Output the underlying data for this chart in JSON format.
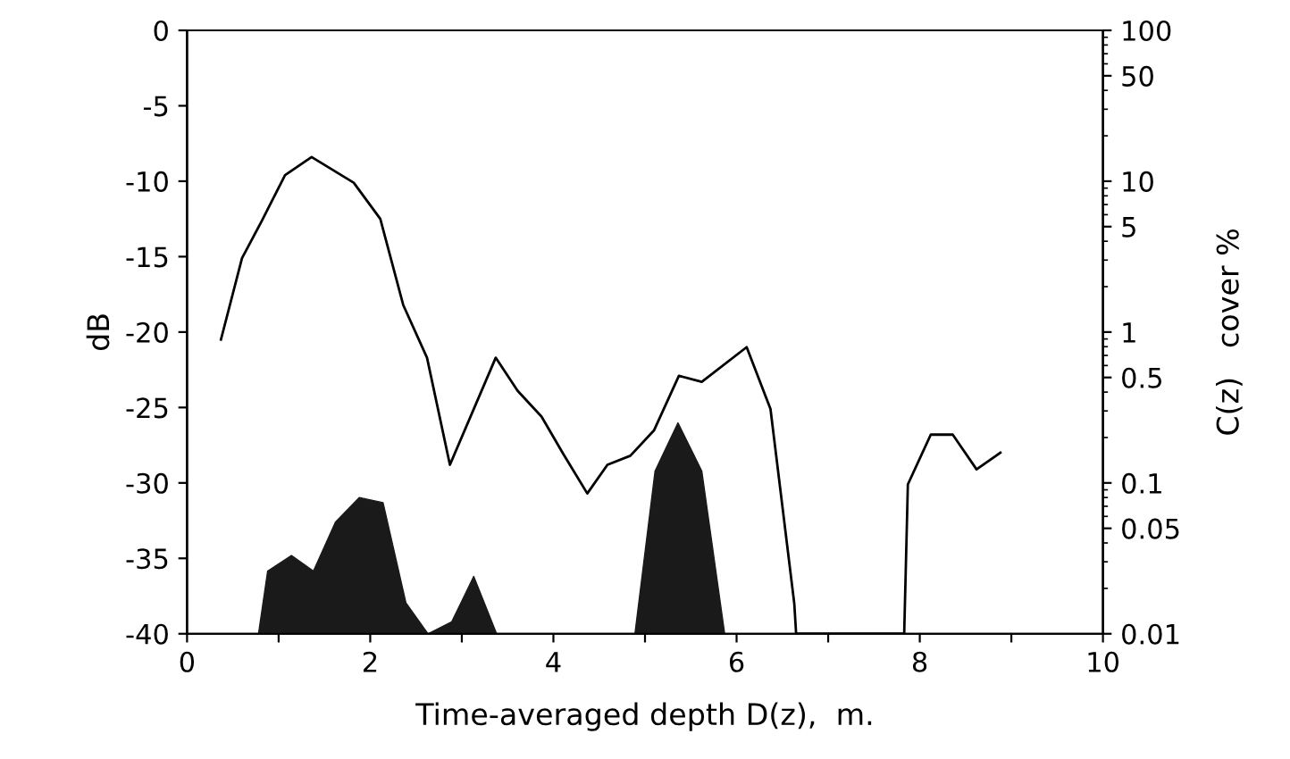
{
  "chart_data": {
    "type": "line",
    "xlabel": "Time-averaged depth D(z),  m.",
    "ylabel": "dB",
    "y2label": "C(z)   cover %",
    "xlim": [
      0,
      10
    ],
    "xticks": [
      0,
      {
        "value": 1,
        "label": null
      },
      2,
      {
        "value": 3,
        "label": null
      },
      4,
      {
        "value": 5,
        "label": null
      },
      6,
      {
        "value": 7,
        "label": null
      },
      8,
      {
        "value": 9,
        "label": null
      },
      10
    ],
    "ylim": [
      -40,
      0
    ],
    "yticks": [
      -40,
      -35,
      -30,
      -25,
      -20,
      -15,
      -10,
      -5,
      0
    ],
    "y2lim": [
      0.01,
      100
    ],
    "y2ticks": [
      0.01,
      0.05,
      0.1,
      0.5,
      1,
      5,
      10,
      50,
      100
    ],
    "log": "y2",
    "grid": false,
    "series": [
      {
        "color": "#000000",
        "x": [
          0.37,
          0.6,
          0.81,
          1.07,
          1.36,
          1.82,
          2.11,
          2.36,
          2.62,
          2.87,
          3.37,
          3.61,
          3.87,
          4.11,
          4.37,
          4.59,
          4.84,
          5.1,
          5.37,
          5.62,
          6.11,
          6.37,
          6.63,
          6.65,
          7.83,
          7.87,
          8.12,
          8.36,
          8.62,
          8.88
        ],
        "values": [
          -20.5,
          -15.1,
          -12.7,
          -9.6,
          -8.4,
          -10.1,
          -12.5,
          -18.2,
          -21.7,
          -28.8,
          -21.7,
          -23.9,
          -25.6,
          -28.1,
          -30.7,
          -28.8,
          -28.2,
          -26.5,
          -22.9,
          -23.3,
          -21.0,
          -25.1,
          -38.0,
          -40,
          -40,
          -30.1,
          -26.8,
          -26.8,
          -29.1,
          -28.0
        ]
      },
      {
        "type": "area",
        "axis": "y2",
        "color": "#1a1a1a",
        "x": [
          0.78,
          0.88,
          1.14,
          1.38,
          1.62,
          1.88,
          2.14,
          2.39,
          2.63,
          2.89,
          3.13,
          3.38,
          4.89,
          5.11,
          5.36,
          5.62,
          5.87
        ],
        "values": [
          0.01,
          0.026,
          0.033,
          0.026,
          0.055,
          0.08,
          0.074,
          0.016,
          0.01,
          0.012,
          0.024,
          0.01,
          0.01,
          0.12,
          0.25,
          0.12,
          0.01
        ]
      }
    ]
  }
}
